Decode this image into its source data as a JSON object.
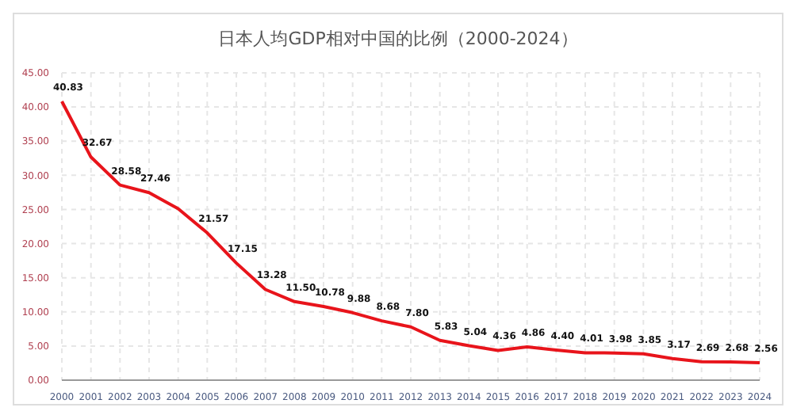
{
  "chart_data": {
    "type": "line",
    "title": "日本人均GDP相对中国的比例（2000-2024）",
    "categories": [
      "2000",
      "2001",
      "2002",
      "2003",
      "2004",
      "2005",
      "2006",
      "2007",
      "2008",
      "2009",
      "2010",
      "2011",
      "2012",
      "2013",
      "2014",
      "2015",
      "2016",
      "2017",
      "2018",
      "2019",
      "2020",
      "2021",
      "2022",
      "2023",
      "2024"
    ],
    "series": [
      {
        "color": "#e8141b",
        "values": [
          40.83,
          32.67,
          28.58,
          27.46,
          25.1,
          21.57,
          17.15,
          13.28,
          11.5,
          10.78,
          9.88,
          8.68,
          7.8,
          5.83,
          5.04,
          4.36,
          4.86,
          4.4,
          4.01,
          3.98,
          3.85,
          3.17,
          2.69,
          2.68,
          2.56
        ]
      }
    ],
    "value_labels": [
      "40.83",
      "32.67",
      "28.58",
      "27.46",
      null,
      "21.57",
      "17.15",
      "13.28",
      "11.50",
      "10.78",
      "9.88",
      "8.68",
      "7.80",
      "5.83",
      "5.04",
      "4.36",
      "4.86",
      "4.40",
      "4.01",
      "3.98",
      "3.85",
      "3.17",
      "2.69",
      "2.68",
      "2.56"
    ],
    "ylim": [
      0,
      45
    ],
    "yticks": [
      {
        "value": 0,
        "label": "0.00"
      },
      {
        "value": 5,
        "label": "5.00"
      },
      {
        "value": 10,
        "label": "10.00"
      },
      {
        "value": 15,
        "label": "15.00"
      },
      {
        "value": 20,
        "label": "20.00"
      },
      {
        "value": 25,
        "label": "25.00"
      },
      {
        "value": 30,
        "label": "30.00"
      },
      {
        "value": 35,
        "label": "35.00"
      },
      {
        "value": 40,
        "label": "40.00"
      },
      {
        "value": 45,
        "label": "45.00"
      }
    ],
    "grid": true,
    "marker": "none",
    "line_style": "solid"
  }
}
